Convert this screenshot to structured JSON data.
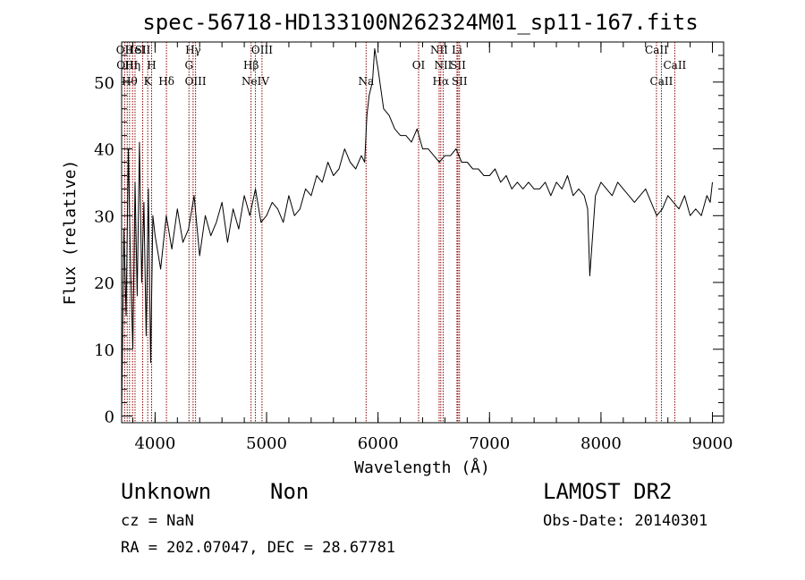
{
  "chart_data": {
    "type": "line",
    "title": "spec-56718-HD133100N262324M01_sp11-167.fits",
    "xlabel": "Wavelength (Å)",
    "ylabel": "Flux (relative)",
    "xlim": [
      3700,
      9100
    ],
    "ylim": [
      -1,
      56
    ],
    "xticks": [
      4000,
      5000,
      6000,
      7000,
      8000,
      9000
    ],
    "yticks": [
      0,
      10,
      20,
      30,
      40,
      50
    ],
    "grid": false,
    "line_color": "#000000",
    "marker_color": "#8b0000",
    "series": [
      {
        "x": [
          3700,
          3720,
          3740,
          3760,
          3780,
          3800,
          3820,
          3840,
          3860,
          3880,
          3900,
          3920,
          3940,
          3960,
          3980,
          4000,
          4050,
          4100,
          4150,
          4200,
          4250,
          4300,
          4350,
          4400,
          4450,
          4500,
          4550,
          4600,
          4650,
          4700,
          4750,
          4800,
          4850,
          4900,
          4950,
          5000,
          5050,
          5100,
          5150,
          5200,
          5250,
          5300,
          5350,
          5400,
          5450,
          5500,
          5550,
          5600,
          5650,
          5700,
          5750,
          5800,
          5850,
          5880,
          5900,
          5920,
          5950,
          5970,
          6000,
          6050,
          6100,
          6150,
          6200,
          6250,
          6300,
          6350,
          6400,
          6450,
          6500,
          6550,
          6600,
          6650,
          6700,
          6750,
          6800,
          6850,
          6900,
          6950,
          7000,
          7050,
          7100,
          7150,
          7200,
          7250,
          7300,
          7350,
          7400,
          7450,
          7500,
          7550,
          7600,
          7650,
          7700,
          7750,
          7800,
          7850,
          7880,
          7900,
          7950,
          8000,
          8050,
          8100,
          8150,
          8200,
          8250,
          8300,
          8350,
          8400,
          8450,
          8500,
          8550,
          8600,
          8650,
          8700,
          8750,
          8800,
          8850,
          8900,
          8950,
          8980,
          9000
        ],
        "y": [
          0,
          28,
          15,
          40,
          22,
          10,
          35,
          18,
          41,
          20,
          32,
          12,
          34,
          8,
          30,
          27,
          22,
          30,
          25,
          31,
          26,
          28,
          33,
          24,
          30,
          27,
          29,
          32,
          26,
          31,
          28,
          33,
          30,
          34,
          29,
          30,
          32,
          31,
          29,
          33,
          30,
          31,
          34,
          33,
          36,
          35,
          38,
          36,
          37,
          40,
          38,
          37,
          39,
          38,
          45,
          48,
          50,
          55,
          52,
          46,
          45,
          43,
          42,
          42,
          41,
          43,
          40,
          40,
          39,
          38,
          39,
          39,
          40,
          38,
          38,
          37,
          37,
          36,
          36,
          37,
          35,
          36,
          34,
          35,
          34,
          35,
          34,
          34,
          35,
          33,
          35,
          34,
          36,
          33,
          34,
          33,
          31,
          21,
          33,
          35,
          34,
          33,
          35,
          34,
          33,
          32,
          33,
          34,
          32,
          30,
          31,
          33,
          32,
          31,
          33,
          30,
          31,
          30,
          33,
          32,
          35
        ]
      }
    ],
    "line_markers": [
      {
        "wl": 3727,
        "label": "OII",
        "row": 1
      },
      {
        "wl": 3750,
        "label": "OIII",
        "row": 2
      },
      {
        "wl": 3771,
        "label": "Hθ",
        "row": 3
      },
      {
        "wl": 3798,
        "label": "Hη",
        "row": 2
      },
      {
        "wl": 3820,
        "label": "HeI",
        "row": 1
      },
      {
        "wl": 3889,
        "label": "SII",
        "row": 1
      },
      {
        "wl": 3934,
        "label": "K",
        "row": 3
      },
      {
        "wl": 3969,
        "label": "H",
        "row": 2
      },
      {
        "wl": 4102,
        "label": "Hδ",
        "row": 3
      },
      {
        "wl": 4304,
        "label": "G",
        "row": 2
      },
      {
        "wl": 4341,
        "label": "Hγ",
        "row": 1
      },
      {
        "wl": 4363,
        "label": "OIII",
        "row": 3
      },
      {
        "wl": 4861,
        "label": "Hβ",
        "row": 2
      },
      {
        "wl": 4900,
        "label": "NeIV",
        "row": 3
      },
      {
        "wl": 4959,
        "label": "OIII",
        "row": 1
      },
      {
        "wl": 5893,
        "label": "Na",
        "row": 3
      },
      {
        "wl": 6364,
        "label": "OI",
        "row": 2
      },
      {
        "wl": 6548,
        "label": "NII",
        "row": 1
      },
      {
        "wl": 6563,
        "label": "Hα",
        "row": 3
      },
      {
        "wl": 6584,
        "label": "NII",
        "row": 2
      },
      {
        "wl": 6708,
        "label": "Li",
        "row": 1
      },
      {
        "wl": 6717,
        "label": "SII",
        "row": 2
      },
      {
        "wl": 6731,
        "label": "SII",
        "row": 3
      },
      {
        "wl": 8498,
        "label": "CaII",
        "row": 1
      },
      {
        "wl": 8542,
        "label": "CaII",
        "row": 3
      },
      {
        "wl": 8662,
        "label": "CaII",
        "row": 2
      }
    ]
  },
  "info": {
    "class": "Unknown",
    "subclass": "Non",
    "survey": "LAMOST DR2",
    "cz": "cz = NaN",
    "obs_date": "Obs-Date: 20140301",
    "radec": "RA = 202.07047, DEC =  28.67781"
  }
}
